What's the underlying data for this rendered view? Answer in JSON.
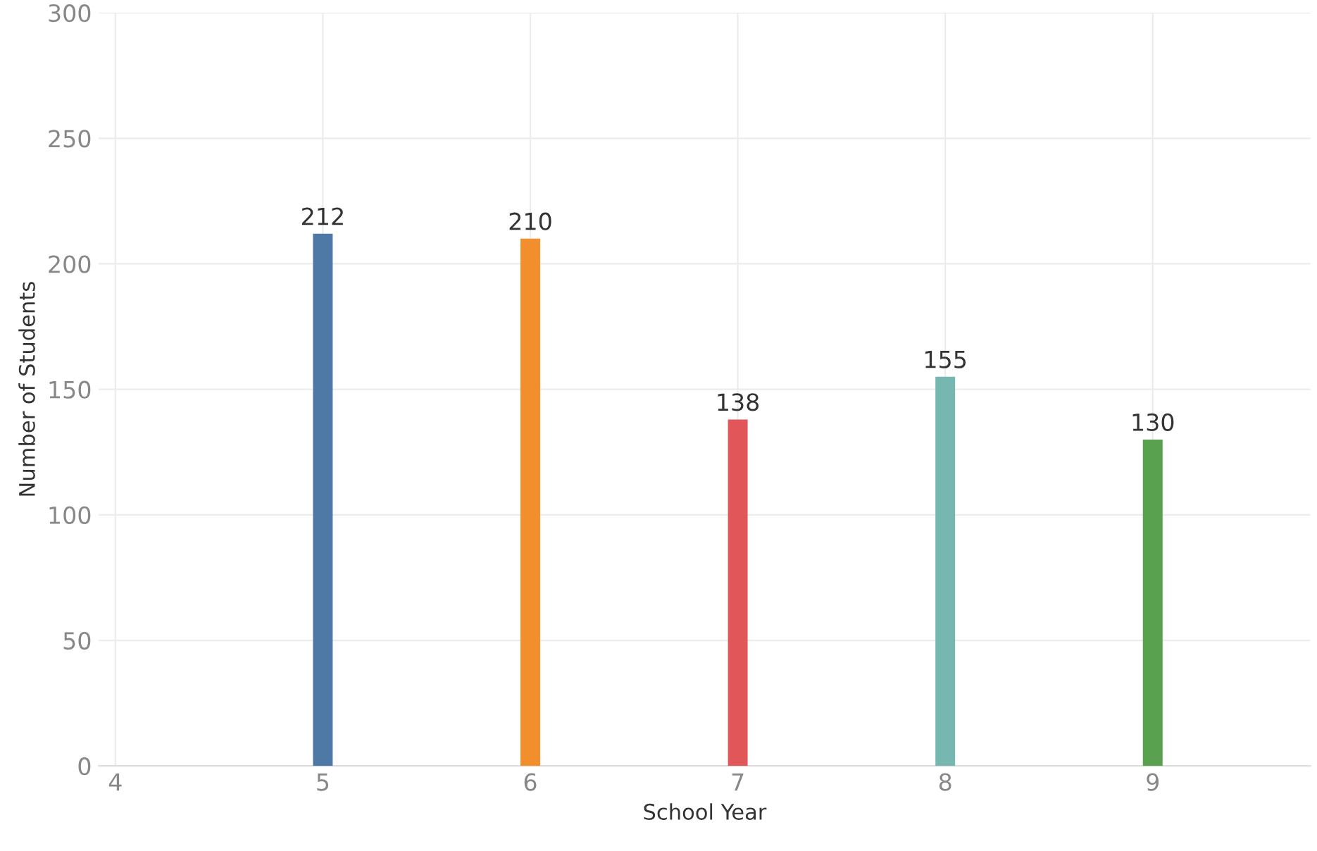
{
  "chart_data": {
    "type": "bar",
    "xlabel": "School Year",
    "ylabel": "Number of Students",
    "x": [
      5,
      6,
      7,
      8,
      9
    ],
    "values": [
      212,
      210,
      138,
      155,
      130
    ],
    "colors": [
      "#4e79a7",
      "#f28e2b",
      "#e15759",
      "#76b7b2",
      "#59a14f"
    ],
    "xlim": [
      3.92,
      9.76
    ],
    "xticks": [
      4,
      5,
      6,
      7,
      8,
      9
    ],
    "ylim": [
      0,
      300
    ],
    "yticks": [
      0,
      50,
      100,
      150,
      200,
      250,
      300
    ],
    "grid": true,
    "data_labels": true
  }
}
